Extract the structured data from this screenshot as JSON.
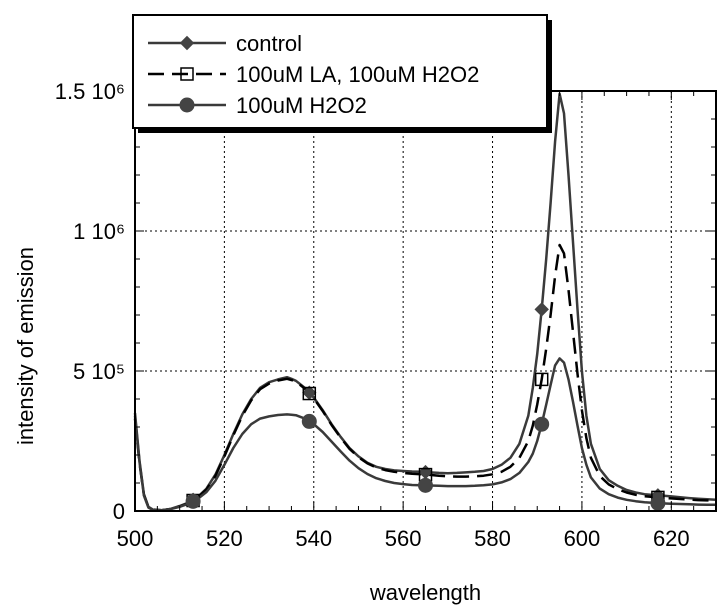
{
  "chart_data": {
    "type": "line",
    "xlabel": "wavelength",
    "ylabel": "intensity of emission",
    "xlim": [
      500,
      630
    ],
    "ylim": [
      0,
      1500000
    ],
    "xticks": [
      500,
      520,
      540,
      560,
      580,
      600,
      620
    ],
    "yticks": [
      {
        "value": 0,
        "label": "0"
      },
      {
        "value": 500000,
        "label": "5 10⁵"
      },
      {
        "value": 1000000,
        "label": "1 10⁶"
      },
      {
        "value": 1500000,
        "label": "1.5 10⁶"
      }
    ],
    "grid": true,
    "legend_position": "top-left",
    "series": [
      {
        "name": "control",
        "style": "solid",
        "marker": "diamond",
        "color": "#3a3a3a",
        "marker_x": [
          513,
          539,
          565,
          591,
          617
        ],
        "x": [
          500,
          501,
          502,
          503,
          504,
          506,
          508,
          510,
          512,
          514,
          516,
          518,
          520,
          522,
          524,
          526,
          528,
          530,
          532,
          534,
          535,
          536,
          538,
          540,
          542,
          544,
          546,
          548,
          550,
          552,
          554,
          556,
          558,
          560,
          562,
          564,
          566,
          568,
          570,
          572,
          574,
          576,
          578,
          580,
          582,
          584,
          586,
          588,
          589,
          590,
          591,
          592,
          593,
          594,
          595,
          596,
          597,
          598,
          599,
          600,
          601,
          602,
          604,
          606,
          608,
          610,
          612,
          614,
          616,
          618,
          620,
          622,
          624,
          626,
          628,
          630
        ],
        "y": [
          350000,
          180000,
          60000,
          15000,
          5000,
          3000,
          8000,
          18000,
          30000,
          50000,
          80000,
          130000,
          200000,
          275000,
          345000,
          400000,
          440000,
          460000,
          470000,
          478000,
          472000,
          465000,
          440000,
          405000,
          360000,
          310000,
          265000,
          225000,
          195000,
          172000,
          158000,
          150000,
          145000,
          143000,
          141000,
          140000,
          138000,
          136000,
          135000,
          136000,
          138000,
          140000,
          143000,
          150000,
          165000,
          190000,
          240000,
          340000,
          440000,
          560000,
          720000,
          900000,
          1100000,
          1320000,
          1490000,
          1420000,
          1200000,
          960000,
          720000,
          500000,
          340000,
          240000,
          150000,
          110000,
          90000,
          75000,
          66000,
          60000,
          57000,
          55000,
          52000,
          49000,
          46000,
          44000,
          42000,
          40000
        ]
      },
      {
        "name": "100uM LA, 100uM H2O2",
        "style": "dashed",
        "marker": "open-square",
        "color": "#000000",
        "marker_x": [
          513,
          539,
          565,
          591,
          617
        ],
        "x": [
          500,
          501,
          502,
          503,
          504,
          506,
          508,
          510,
          512,
          514,
          516,
          518,
          520,
          522,
          524,
          526,
          528,
          530,
          532,
          534,
          535,
          536,
          538,
          540,
          542,
          544,
          546,
          548,
          550,
          552,
          554,
          556,
          558,
          560,
          562,
          564,
          566,
          568,
          570,
          572,
          574,
          576,
          578,
          580,
          582,
          584,
          586,
          588,
          589,
          590,
          591,
          592,
          593,
          594,
          595,
          596,
          597,
          598,
          599,
          600,
          601,
          602,
          604,
          606,
          608,
          610,
          612,
          614,
          616,
          618,
          620,
          622,
          624,
          626,
          628,
          630
        ],
        "y": [
          330000,
          170000,
          58000,
          14000,
          5000,
          3000,
          7000,
          16000,
          28000,
          47000,
          77000,
          125000,
          195000,
          270000,
          340000,
          395000,
          435000,
          455000,
          466000,
          472000,
          468000,
          462000,
          437000,
          402000,
          357000,
          307000,
          262000,
          222000,
          192000,
          170000,
          155000,
          146000,
          140000,
          136000,
          133000,
          131000,
          129000,
          126000,
          124000,
          123000,
          123000,
          124000,
          126000,
          131000,
          140000,
          158000,
          190000,
          250000,
          305000,
          380000,
          470000,
          580000,
          700000,
          840000,
          950000,
          920000,
          790000,
          640000,
          490000,
          360000,
          260000,
          190000,
          125000,
          95000,
          78000,
          66000,
          58000,
          53000,
          50000,
          47000,
          45000,
          43000,
          41000,
          39000,
          38000,
          37000
        ]
      },
      {
        "name": "100uM H2O2",
        "style": "solid",
        "marker": "filled-circle",
        "color": "#3a3a3a",
        "marker_x": [
          513,
          539,
          565,
          591,
          617
        ],
        "x": [
          500,
          501,
          502,
          503,
          504,
          506,
          508,
          510,
          512,
          514,
          516,
          518,
          520,
          522,
          524,
          526,
          528,
          530,
          532,
          534,
          535,
          536,
          538,
          540,
          542,
          544,
          546,
          548,
          550,
          552,
          554,
          556,
          558,
          560,
          562,
          564,
          566,
          568,
          570,
          572,
          574,
          576,
          578,
          580,
          582,
          584,
          586,
          588,
          589,
          590,
          591,
          592,
          593,
          594,
          595,
          596,
          597,
          598,
          599,
          600,
          601,
          602,
          604,
          606,
          608,
          610,
          612,
          614,
          616,
          618,
          620,
          622,
          624,
          626,
          628,
          630
        ],
        "y": [
          340000,
          175000,
          55000,
          12000,
          4000,
          3000,
          7000,
          15000,
          26000,
          43000,
          68000,
          108000,
          165000,
          225000,
          275000,
          310000,
          330000,
          338000,
          343000,
          345000,
          344000,
          342000,
          330000,
          310000,
          282000,
          248000,
          213000,
          180000,
          153000,
          132000,
          117000,
          107000,
          100000,
          96000,
          93000,
          92000,
          91000,
          90000,
          89000,
          89000,
          89000,
          90000,
          92000,
          95000,
          102000,
          114000,
          136000,
          175000,
          205000,
          250000,
          310000,
          380000,
          450000,
          520000,
          545000,
          530000,
          470000,
          390000,
          305000,
          225000,
          165000,
          120000,
          80000,
          60000,
          48000,
          40000,
          35000,
          31000,
          29000,
          27000,
          26000,
          25000,
          24000,
          23000,
          22000,
          22000
        ]
      }
    ]
  }
}
